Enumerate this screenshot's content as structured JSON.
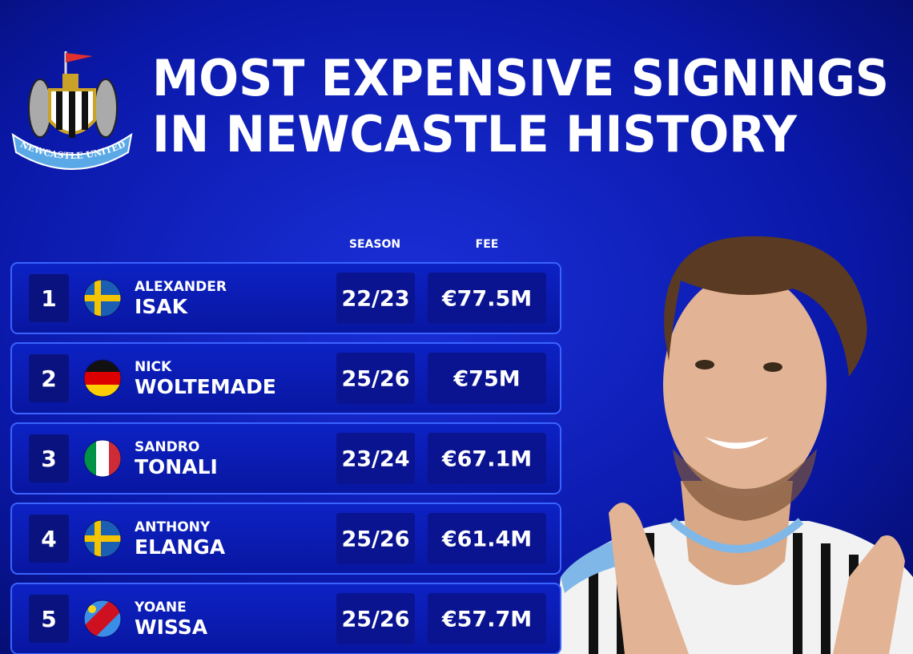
{
  "header": {
    "title_lines": [
      "MOST EXPENSIVE SIGNINGS",
      "IN NEWCASTLE HISTORY"
    ],
    "crest_text": "NEWCASTLE UNITED"
  },
  "table": {
    "columns": [
      "SEASON",
      "FEE"
    ],
    "rows": [
      {
        "rank": 1,
        "first_name": "ALEXANDER",
        "last_name": "ISAK",
        "season": "22/23",
        "fee": "€77.5M"
      },
      {
        "rank": 2,
        "first_name": "NICK",
        "last_name": "WOLTEMADE",
        "season": "25/26",
        "fee": "€75M"
      },
      {
        "rank": 3,
        "first_name": "SANDRO",
        "last_name": "TONALI",
        "season": "23/24",
        "fee": "€67.1M"
      },
      {
        "rank": 4,
        "first_name": "ANTHONY",
        "last_name": "ELANGA",
        "season": "25/26",
        "fee": "€61.4M"
      },
      {
        "rank": 5,
        "first_name": "YOANE",
        "last_name": "WISSA",
        "season": "25/26",
        "fee": "€57.7M"
      }
    ]
  }
}
